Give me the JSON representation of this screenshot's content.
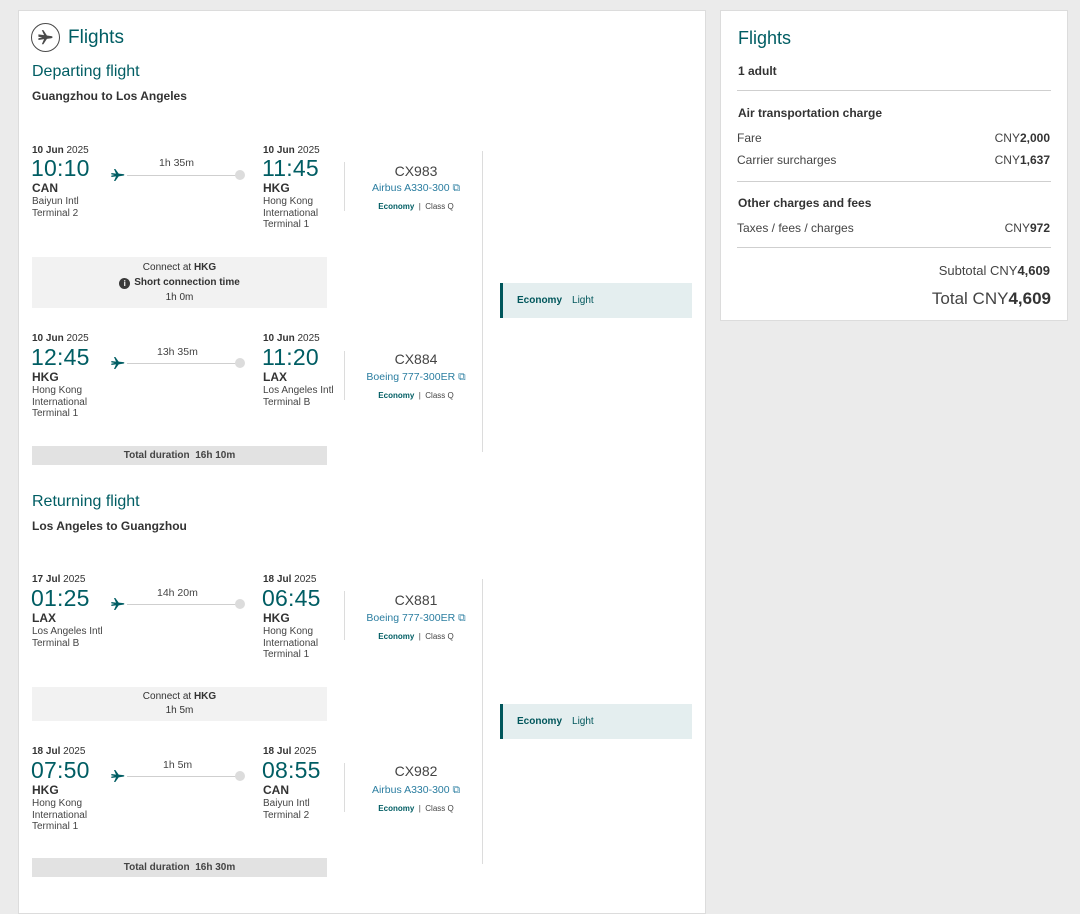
{
  "main": {
    "title": "Flights",
    "departing": {
      "heading": "Departing flight",
      "route": "Guangzhou to Los Angeles",
      "segments": [
        {
          "dep_date_bold": "10 Jun",
          "dep_date_year": "2025",
          "dep_time": "10:10",
          "dep_code": "CAN",
          "dep_airport": "Baiyun Intl",
          "dep_terminal": "Terminal 2",
          "duration": "1h 35m",
          "arr_date_bold": "10 Jun",
          "arr_date_year": "2025",
          "arr_time": "11:45",
          "arr_code": "HKG",
          "arr_airport": "Hong Kong International",
          "arr_terminal": "Terminal 1",
          "flight_no": "CX983",
          "aircraft": "Airbus A330-300",
          "cabin": "Economy",
          "class": "Class Q"
        },
        {
          "dep_date_bold": "10 Jun",
          "dep_date_year": "2025",
          "dep_time": "12:45",
          "dep_code": "HKG",
          "dep_airport": "Hong Kong International",
          "dep_terminal": "Terminal 1",
          "duration": "13h 35m",
          "arr_date_bold": "10 Jun",
          "arr_date_year": "2025",
          "arr_time": "11:20",
          "arr_code": "LAX",
          "arr_airport": "Los Angeles Intl",
          "arr_terminal": "Terminal B",
          "flight_no": "CX884",
          "aircraft": "Boeing 777-300ER",
          "cabin": "Economy",
          "class": "Class Q"
        }
      ],
      "connection": {
        "prefix": "Connect at ",
        "airport": "HKG",
        "warning": "Short connection time",
        "time": "1h 0m"
      },
      "total_label": "Total duration",
      "total_value": "16h 10m",
      "fare_cabin": "Economy",
      "fare_brand": "Light"
    },
    "returning": {
      "heading": "Returning flight",
      "route": "Los Angeles to Guangzhou",
      "segments": [
        {
          "dep_date_bold": "17 Jul",
          "dep_date_year": "2025",
          "dep_time": "01:25",
          "dep_code": "LAX",
          "dep_airport": "Los Angeles Intl",
          "dep_terminal": "Terminal B",
          "duration": "14h 20m",
          "arr_date_bold": "18 Jul",
          "arr_date_year": "2025",
          "arr_time": "06:45",
          "arr_code": "HKG",
          "arr_airport": "Hong Kong International",
          "arr_terminal": "Terminal 1",
          "flight_no": "CX881",
          "aircraft": "Boeing 777-300ER",
          "cabin": "Economy",
          "class": "Class Q"
        },
        {
          "dep_date_bold": "18 Jul",
          "dep_date_year": "2025",
          "dep_time": "07:50",
          "dep_code": "HKG",
          "dep_airport": "Hong Kong International",
          "dep_terminal": "Terminal 1",
          "duration": "1h 5m",
          "arr_date_bold": "18 Jul",
          "arr_date_year": "2025",
          "arr_time": "08:55",
          "arr_code": "CAN",
          "arr_airport": "Baiyun Intl",
          "arr_terminal": "Terminal 2",
          "flight_no": "CX982",
          "aircraft": "Airbus A330-300",
          "cabin": "Economy",
          "class": "Class Q"
        }
      ],
      "connection": {
        "prefix": "Connect at ",
        "airport": "HKG",
        "time": "1h 5m"
      },
      "total_label": "Total duration",
      "total_value": "16h 30m",
      "fare_cabin": "Economy",
      "fare_brand": "Light"
    }
  },
  "summary": {
    "title": "Flights",
    "passengers": "1 adult",
    "air_heading": "Air transportation charge",
    "fare_label": "Fare",
    "fare_currency": "CNY",
    "fare_amount": "2,000",
    "surcharge_label": "Carrier surcharges",
    "surcharge_currency": "CNY",
    "surcharge_amount": "1,637",
    "other_heading": "Other charges and fees",
    "taxes_label": "Taxes / fees / charges",
    "taxes_currency": "CNY",
    "taxes_amount": "972",
    "subtotal_label": "Subtotal CNY",
    "subtotal_amount": "4,609",
    "total_label": "Total CNY",
    "total_amount": "4,609"
  },
  "colors": {
    "brand_teal": "#005d63",
    "link_blue": "#2a7da0",
    "background": "#ebebeb"
  },
  "icons": {
    "header": "airplane-circle-icon",
    "route": "airplane-icon",
    "aircraft": "external-link-icon",
    "warning": "info-icon"
  }
}
